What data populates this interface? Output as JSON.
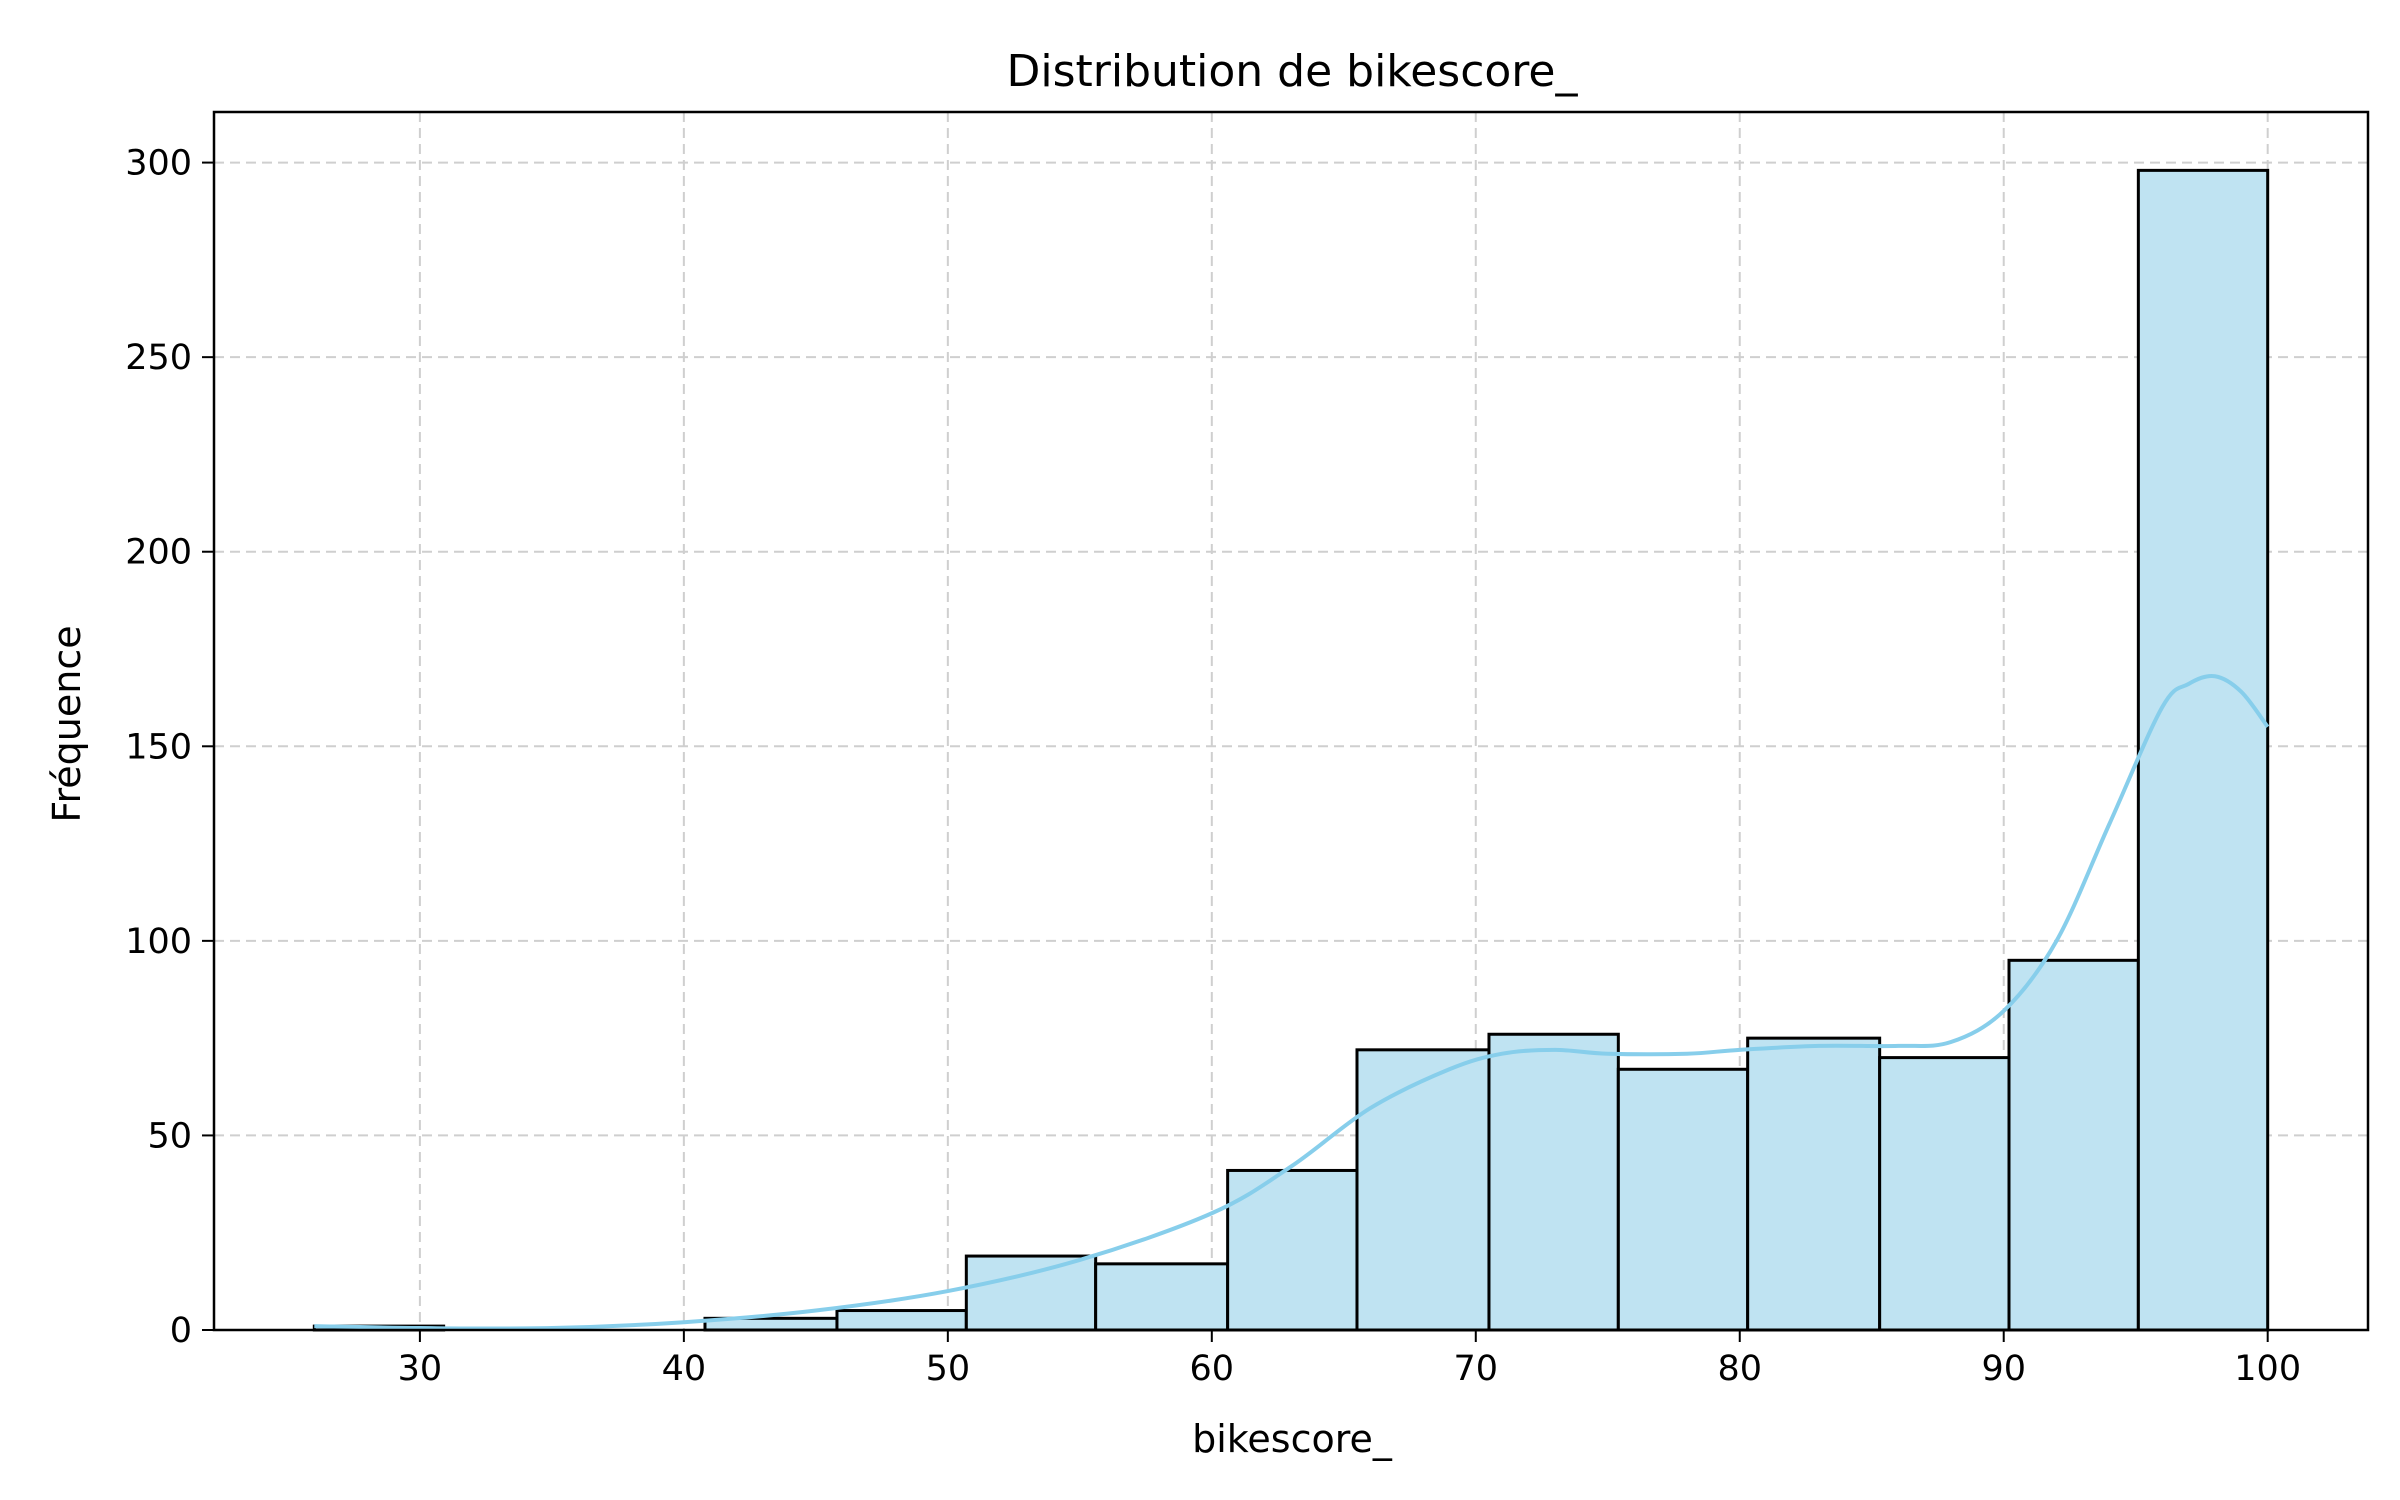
{
  "chart_data": {
    "type": "bar",
    "title": "Distribution de bikescore_",
    "xlabel": "bikescore_",
    "ylabel": "Fréquence",
    "xlim": [
      22.2,
      103.8
    ],
    "ylim": [
      0,
      313
    ],
    "xticks": [
      30,
      40,
      50,
      60,
      70,
      80,
      90,
      100
    ],
    "yticks": [
      0,
      50,
      100,
      150,
      200,
      250,
      300
    ],
    "grid": true,
    "bins": [
      {
        "x0": 26.0,
        "x1": 30.9,
        "count": 1
      },
      {
        "x0": 30.9,
        "x1": 35.9,
        "count": 0
      },
      {
        "x0": 35.9,
        "x1": 40.8,
        "count": 0
      },
      {
        "x0": 40.8,
        "x1": 45.8,
        "count": 3
      },
      {
        "x0": 45.8,
        "x1": 50.7,
        "count": 5
      },
      {
        "x0": 50.7,
        "x1": 55.6,
        "count": 19
      },
      {
        "x0": 55.6,
        "x1": 60.6,
        "count": 17
      },
      {
        "x0": 60.6,
        "x1": 65.5,
        "count": 41
      },
      {
        "x0": 65.5,
        "x1": 70.5,
        "count": 72
      },
      {
        "x0": 70.5,
        "x1": 75.4,
        "count": 76
      },
      {
        "x0": 75.4,
        "x1": 80.3,
        "count": 67
      },
      {
        "x0": 80.3,
        "x1": 85.3,
        "count": 75
      },
      {
        "x0": 85.3,
        "x1": 90.2,
        "count": 70
      },
      {
        "x0": 90.2,
        "x1": 95.1,
        "count": 95
      },
      {
        "x0": 95.1,
        "x1": 100.0,
        "count": 298
      }
    ],
    "kde": {
      "x": [
        26,
        30,
        35,
        40,
        45,
        50,
        55,
        60,
        63,
        66,
        69,
        71,
        73,
        75,
        78,
        80,
        83,
        86,
        88,
        90,
        92,
        94,
        96,
        97,
        98,
        99,
        100
      ],
      "y": [
        1,
        0.5,
        0.5,
        2,
        5,
        10,
        18,
        30,
        42,
        57,
        67,
        71,
        72,
        71,
        71,
        72,
        73,
        73,
        74,
        82,
        100,
        130,
        160,
        166,
        168,
        164,
        155
      ]
    }
  }
}
